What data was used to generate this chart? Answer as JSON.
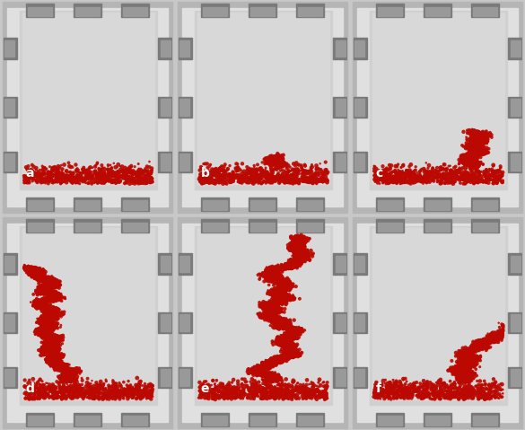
{
  "figure_width": 5.85,
  "figure_height": 4.79,
  "dpi": 100,
  "bg_color": "#c8c8c8",
  "frame_outer_color": "#b8b8b8",
  "frame_white_color": "#e8e8e8",
  "cell_interior_color": "#d2d2d2",
  "bolt_dark": "#888888",
  "bolt_light": "#aaaaaa",
  "red_color": "#bb0800",
  "label_color": "white",
  "nrows": 2,
  "ncols": 3,
  "panels": [
    {
      "label": "a",
      "plume_type": "none"
    },
    {
      "label": "b",
      "plume_type": "small_start"
    },
    {
      "label": "c",
      "plume_type": "short_right"
    },
    {
      "label": "d",
      "plume_type": "tall_left"
    },
    {
      "label": "e",
      "plume_type": "tall_center"
    },
    {
      "label": "f",
      "plume_type": "tall_right"
    }
  ]
}
